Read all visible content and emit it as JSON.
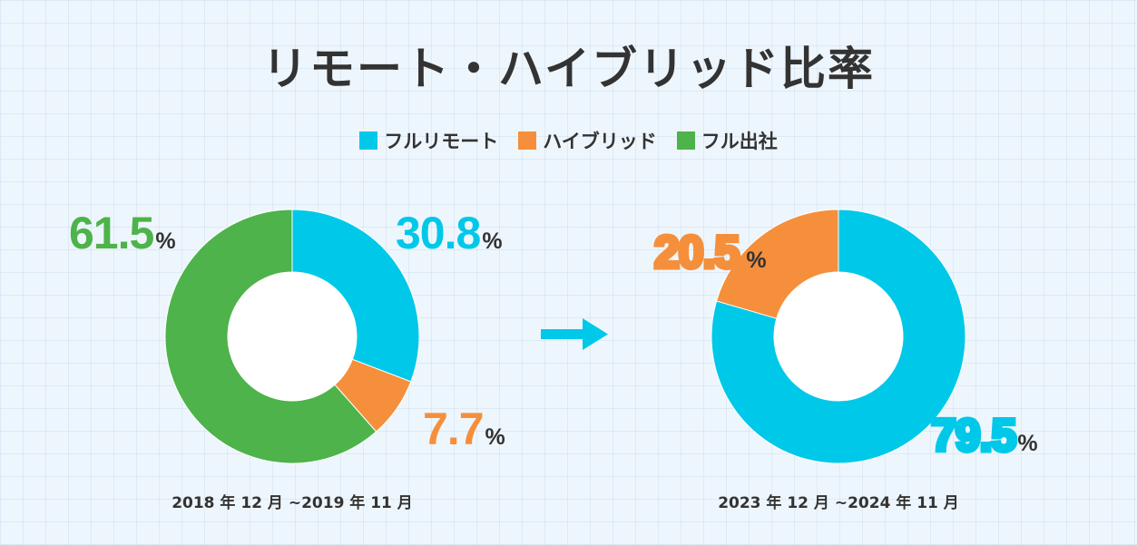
{
  "title": "リモート・ハイブリッド比率",
  "colors": {
    "full_remote": "#00c8e8",
    "hybrid": "#f58f3c",
    "full_office": "#4db34a"
  },
  "legend": [
    {
      "label": "フルリモート",
      "color": "#00c8e8"
    },
    {
      "label": "ハイブリッド",
      "color": "#f58f3c"
    },
    {
      "label": "フル出社",
      "color": "#4db34a"
    }
  ],
  "arrow_icon": "right-arrow-icon",
  "chart_data": [
    {
      "type": "pie",
      "title": "",
      "period": "2018 年 12 月 ~2019 年 11 月",
      "categories": [
        "フルリモート",
        "ハイブリッド",
        "フル出社"
      ],
      "values": [
        30.8,
        7.7,
        61.5
      ],
      "labels": [
        "30.8",
        "7.7",
        "61.5"
      ],
      "unit": "%",
      "colors": [
        "#00c8e8",
        "#f58f3c",
        "#4db34a"
      ]
    },
    {
      "type": "pie",
      "title": "",
      "period": "2023 年 12 月 ~2024 年 11 月",
      "categories": [
        "フルリモート",
        "ハイブリッド"
      ],
      "values": [
        79.5,
        20.5
      ],
      "labels": [
        "79.5",
        "20.5"
      ],
      "unit": "%",
      "colors": [
        "#00c8e8",
        "#f58f3c"
      ]
    }
  ]
}
